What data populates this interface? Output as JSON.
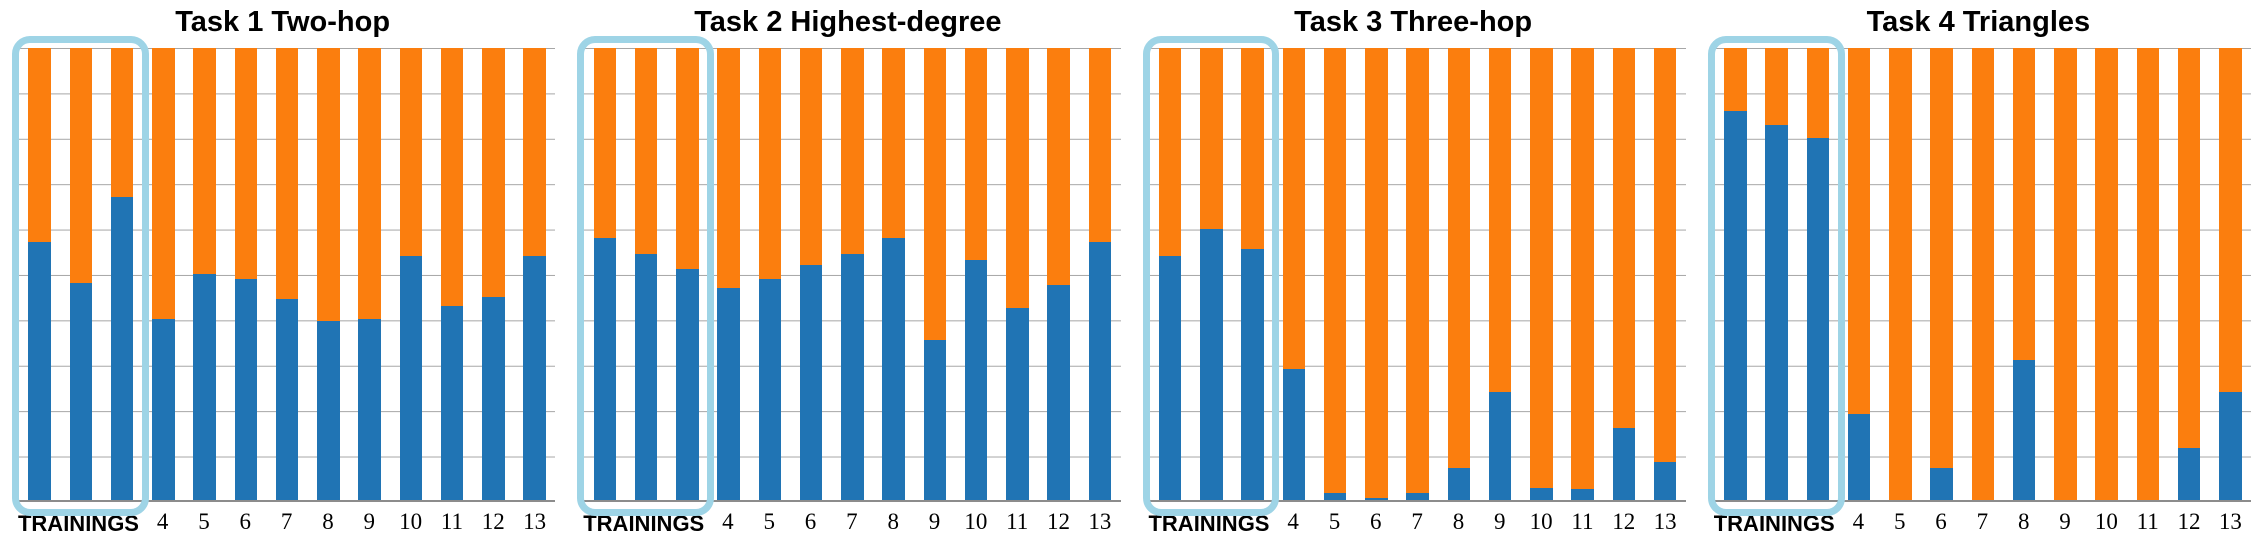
{
  "colors": {
    "blue": "#2074B4",
    "orange": "#FB7E0E",
    "highlight": "#9ED4E6",
    "gridline": "#A6A6A6",
    "axis": "#8C8C8C",
    "title_text": "#000000"
  },
  "x_axis": {
    "group_label": "TRAININGS",
    "group_bar_count": 3,
    "tick_labels": [
      "4",
      "5",
      "6",
      "7",
      "8",
      "9",
      "10",
      "11",
      "12",
      "13"
    ]
  },
  "chart_data": [
    {
      "type": "bar",
      "stacked": true,
      "title": "Task 1 Two-hop",
      "categories": [
        "Training 1",
        "Training 2",
        "Training 3",
        "4",
        "5",
        "6",
        "7",
        "8",
        "9",
        "10",
        "11",
        "12",
        "13"
      ],
      "series": [
        {
          "name": "blue-bottom",
          "color_key": "blue",
          "values": [
            0.57,
            0.48,
            0.67,
            0.4,
            0.5,
            0.49,
            0.445,
            0.395,
            0.4,
            0.54,
            0.43,
            0.45,
            0.54
          ]
        },
        {
          "name": "orange-top",
          "color_key": "orange",
          "values": [
            0.43,
            0.52,
            0.33,
            0.6,
            0.5,
            0.51,
            0.555,
            0.605,
            0.6,
            0.46,
            0.57,
            0.55,
            0.46
          ]
        }
      ],
      "ylim": [
        0,
        1
      ],
      "gridline_intervals": 10,
      "legend": "none",
      "highlight": {
        "bars": [
          1,
          2,
          3
        ],
        "label": "TRAININGS"
      }
    },
    {
      "type": "bar",
      "stacked": true,
      "title": "Task 2 Highest-degree",
      "categories": [
        "Training 1",
        "Training 2",
        "Training 3",
        "4",
        "5",
        "6",
        "7",
        "8",
        "9",
        "10",
        "11",
        "12",
        "13"
      ],
      "series": [
        {
          "name": "blue-bottom",
          "color_key": "blue",
          "values": [
            0.58,
            0.545,
            0.51,
            0.47,
            0.49,
            0.52,
            0.545,
            0.58,
            0.355,
            0.53,
            0.425,
            0.475,
            0.57
          ]
        },
        {
          "name": "orange-top",
          "color_key": "orange",
          "values": [
            0.42,
            0.455,
            0.49,
            0.53,
            0.51,
            0.48,
            0.455,
            0.42,
            0.645,
            0.47,
            0.575,
            0.525,
            0.43
          ]
        }
      ],
      "ylim": [
        0,
        1
      ],
      "gridline_intervals": 10,
      "legend": "none",
      "highlight": {
        "bars": [
          1,
          2,
          3
        ],
        "label": "TRAININGS"
      }
    },
    {
      "type": "bar",
      "stacked": true,
      "title": "Task 3 Three-hop",
      "categories": [
        "Training 1",
        "Training 2",
        "Training 3",
        "4",
        "5",
        "6",
        "7",
        "8",
        "9",
        "10",
        "11",
        "12",
        "13"
      ],
      "series": [
        {
          "name": "blue-bottom",
          "color_key": "blue",
          "values": [
            0.54,
            0.6,
            0.555,
            0.29,
            0.015,
            0.005,
            0.015,
            0.07,
            0.24,
            0.026,
            0.024,
            0.16,
            0.085
          ]
        },
        {
          "name": "orange-top",
          "color_key": "orange",
          "values": [
            0.46,
            0.4,
            0.445,
            0.71,
            0.985,
            0.995,
            0.985,
            0.93,
            0.76,
            0.974,
            0.976,
            0.84,
            0.915
          ]
        }
      ],
      "ylim": [
        0,
        1
      ],
      "gridline_intervals": 10,
      "legend": "none",
      "highlight": {
        "bars": [
          1,
          2,
          3
        ],
        "label": "TRAININGS"
      }
    },
    {
      "type": "bar",
      "stacked": true,
      "title": "Task 4 Triangles",
      "categories": [
        "Training 1",
        "Training 2",
        "Training 3",
        "4",
        "5",
        "6",
        "7",
        "8",
        "9",
        "10",
        "11",
        "12",
        "13"
      ],
      "series": [
        {
          "name": "blue-bottom",
          "color_key": "blue",
          "values": [
            0.86,
            0.83,
            0.8,
            0.19,
            0.0,
            0.07,
            0.0,
            0.31,
            0.0,
            0.0,
            0.0,
            0.115,
            0.24
          ]
        },
        {
          "name": "orange-top",
          "color_key": "orange",
          "values": [
            0.14,
            0.17,
            0.2,
            0.81,
            1.0,
            0.93,
            1.0,
            0.69,
            1.0,
            1.0,
            1.0,
            0.885,
            0.76
          ]
        }
      ],
      "ylim": [
        0,
        1
      ],
      "gridline_intervals": 10,
      "legend": "none",
      "highlight": {
        "bars": [
          1,
          2,
          3
        ],
        "label": "TRAININGS"
      }
    }
  ]
}
